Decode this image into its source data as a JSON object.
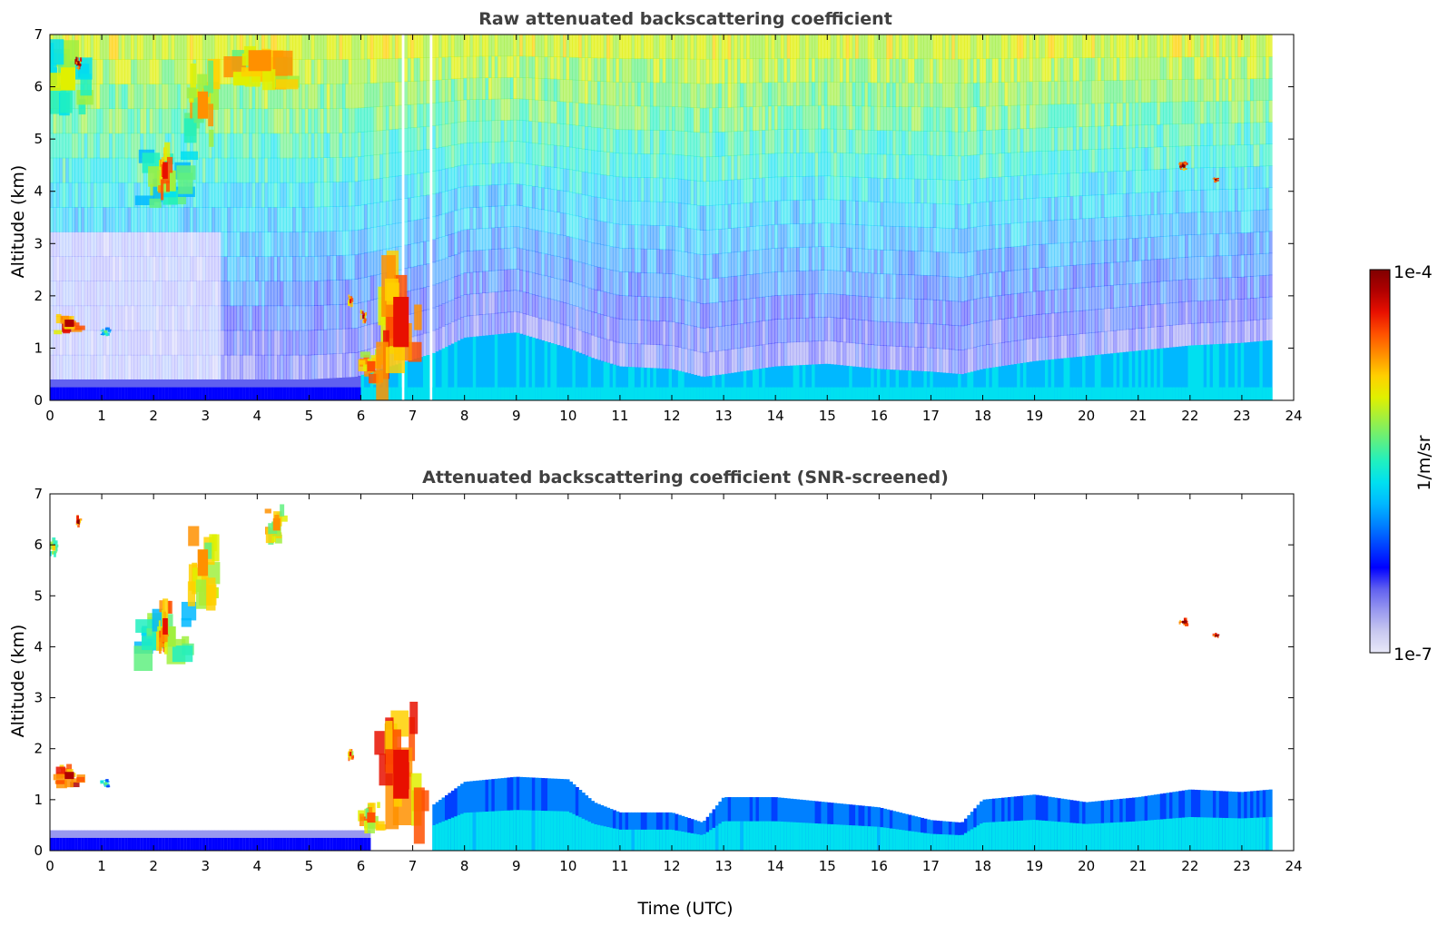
{
  "chart_data": [
    {
      "type": "heatmap",
      "title": "Raw attenuated backscattering coefficient",
      "xlabel": "",
      "ylabel": "Altitude (km)",
      "xlim": [
        0,
        24
      ],
      "ylim": [
        0,
        7
      ],
      "xticks": [
        "0",
        "1",
        "2",
        "3",
        "4",
        "5",
        "6",
        "7",
        "8",
        "9",
        "10",
        "11",
        "12",
        "13",
        "14",
        "15",
        "16",
        "17",
        "18",
        "19",
        "20",
        "21",
        "22",
        "23",
        "24"
      ],
      "yticks": [
        "0",
        "1",
        "2",
        "3",
        "4",
        "5",
        "6",
        "7"
      ],
      "data_end_time": 23.55,
      "gaps": [
        [
          6.75,
          6.85
        ],
        [
          7.3,
          7.36
        ]
      ],
      "boundary_layer_top_km": [
        [
          0,
          0.4
        ],
        [
          1,
          0.4
        ],
        [
          2,
          0.4
        ],
        [
          3,
          0.4
        ],
        [
          4,
          0.4
        ],
        [
          5,
          0.4
        ],
        [
          5.9,
          0.45
        ],
        [
          7.4,
          0.9
        ],
        [
          8,
          1.2
        ],
        [
          9,
          1.3
        ],
        [
          10,
          1.0
        ],
        [
          10.5,
          0.8
        ],
        [
          11,
          0.65
        ],
        [
          12,
          0.6
        ],
        [
          12.6,
          0.45
        ],
        [
          13,
          0.5
        ],
        [
          14,
          0.65
        ],
        [
          15,
          0.7
        ],
        [
          16,
          0.6
        ],
        [
          17,
          0.55
        ],
        [
          17.6,
          0.5
        ],
        [
          18,
          0.6
        ],
        [
          19,
          0.75
        ],
        [
          20,
          0.85
        ],
        [
          21,
          0.95
        ],
        [
          22,
          1.05
        ],
        [
          23,
          1.1
        ],
        [
          23.55,
          1.15
        ]
      ],
      "features": [
        {
          "t0": 0.0,
          "t1": 0.7,
          "z0": 5.6,
          "z1": 6.7,
          "level": 0.65
        },
        {
          "t0": 0.5,
          "t1": 0.6,
          "z0": 6.35,
          "z1": 6.55,
          "level": 0.95
        },
        {
          "t0": 0.15,
          "t1": 0.6,
          "z0": 1.3,
          "z1": 1.65,
          "level": 0.92
        },
        {
          "t0": 1.0,
          "t1": 1.15,
          "z0": 1.25,
          "z1": 1.38,
          "level": 0.55
        },
        {
          "t0": 1.8,
          "t1": 2.7,
          "z0": 3.7,
          "z1": 4.7,
          "level": 0.6
        },
        {
          "t0": 2.1,
          "t1": 2.35,
          "z0": 4.0,
          "z1": 4.8,
          "level": 0.85
        },
        {
          "t0": 2.7,
          "t1": 3.2,
          "z0": 5.0,
          "z1": 6.3,
          "level": 0.75
        },
        {
          "t0": 3.5,
          "t1": 4.6,
          "z0": 6.0,
          "z1": 7.0,
          "level": 0.78
        },
        {
          "t0": 5.75,
          "t1": 5.85,
          "z0": 1.8,
          "z1": 2.0,
          "level": 0.85
        },
        {
          "t0": 6.0,
          "t1": 6.4,
          "z0": 0.4,
          "z1": 0.9,
          "level": 0.82
        },
        {
          "t0": 6.0,
          "t1": 6.1,
          "z0": 1.5,
          "z1": 1.7,
          "level": 0.9
        },
        {
          "t0": 6.4,
          "t1": 7.15,
          "z0": 0.3,
          "z1": 2.7,
          "level": 0.88
        },
        {
          "t0": 21.8,
          "t1": 21.95,
          "z0": 4.42,
          "z1": 4.55,
          "level": 0.97
        },
        {
          "t0": 22.45,
          "t1": 22.55,
          "z0": 4.18,
          "z1": 4.26,
          "level": 0.97
        }
      ]
    },
    {
      "type": "heatmap",
      "title": "Attenuated backscattering coefficient (SNR-screened)",
      "xlabel": "Time (UTC)",
      "ylabel": "Altitude (km)",
      "xlim": [
        0,
        24
      ],
      "ylim": [
        0,
        7
      ],
      "xticks": [
        "0",
        "1",
        "2",
        "3",
        "4",
        "5",
        "6",
        "7",
        "8",
        "9",
        "10",
        "11",
        "12",
        "13",
        "14",
        "15",
        "16",
        "17",
        "18",
        "19",
        "20",
        "21",
        "22",
        "23",
        "24"
      ],
      "yticks": [
        "0",
        "1",
        "2",
        "3",
        "4",
        "5",
        "6",
        "7"
      ],
      "data_end_time": 23.55,
      "screened_boundary_layer_top_km": [
        [
          7.4,
          0.9
        ],
        [
          8,
          1.35
        ],
        [
          9,
          1.45
        ],
        [
          10,
          1.4
        ],
        [
          10.5,
          0.95
        ],
        [
          11,
          0.75
        ],
        [
          12,
          0.75
        ],
        [
          12.6,
          0.55
        ],
        [
          13,
          1.05
        ],
        [
          14,
          1.05
        ],
        [
          15,
          0.95
        ],
        [
          16,
          0.85
        ],
        [
          17,
          0.6
        ],
        [
          17.6,
          0.55
        ],
        [
          18,
          1.0
        ],
        [
          19,
          1.1
        ],
        [
          20,
          0.95
        ],
        [
          21,
          1.05
        ],
        [
          22,
          1.2
        ],
        [
          23,
          1.15
        ],
        [
          23.55,
          1.2
        ]
      ],
      "features": [
        {
          "t0": 0.0,
          "t1": 0.15,
          "z0": 5.8,
          "z1": 6.1,
          "level": 0.7
        },
        {
          "t0": 0.5,
          "t1": 0.6,
          "z0": 6.35,
          "z1": 6.55,
          "level": 0.95
        },
        {
          "t0": 0.15,
          "t1": 0.6,
          "z0": 1.3,
          "z1": 1.65,
          "level": 0.92
        },
        {
          "t0": 1.0,
          "t1": 1.15,
          "z0": 1.25,
          "z1": 1.38,
          "level": 0.55
        },
        {
          "t0": 1.8,
          "t1": 2.7,
          "z0": 3.7,
          "z1": 4.7,
          "level": 0.6
        },
        {
          "t0": 2.1,
          "t1": 2.35,
          "z0": 4.0,
          "z1": 4.8,
          "level": 0.85
        },
        {
          "t0": 2.7,
          "t1": 3.2,
          "z0": 5.0,
          "z1": 6.3,
          "level": 0.75
        },
        {
          "t0": 4.2,
          "t1": 4.55,
          "z0": 6.1,
          "z1": 6.7,
          "level": 0.78
        },
        {
          "t0": 5.75,
          "t1": 5.85,
          "z0": 1.8,
          "z1": 2.0,
          "level": 0.85
        },
        {
          "t0": 6.0,
          "t1": 6.4,
          "z0": 0.4,
          "z1": 0.9,
          "level": 0.82
        },
        {
          "t0": 6.4,
          "t1": 7.15,
          "z0": 0.3,
          "z1": 2.7,
          "level": 0.88
        },
        {
          "t0": 21.8,
          "t1": 21.95,
          "z0": 4.42,
          "z1": 4.55,
          "level": 0.97
        },
        {
          "t0": 22.45,
          "t1": 22.55,
          "z0": 4.18,
          "z1": 4.26,
          "level": 0.97
        }
      ]
    }
  ],
  "colorbar": {
    "max_label": "1e-4",
    "min_label": "1e-7",
    "unit_label": "1/m/sr",
    "colors": [
      "#e8e8f8",
      "#c8c8f0",
      "#9898f0",
      "#6060f0",
      "#0000ff",
      "#0040ff",
      "#0080ff",
      "#00b8ff",
      "#00e0f0",
      "#20f0c0",
      "#60f080",
      "#a0f040",
      "#e0f000",
      "#ffd000",
      "#ff9000",
      "#ff5000",
      "#e81000",
      "#b00000",
      "#800000"
    ]
  }
}
